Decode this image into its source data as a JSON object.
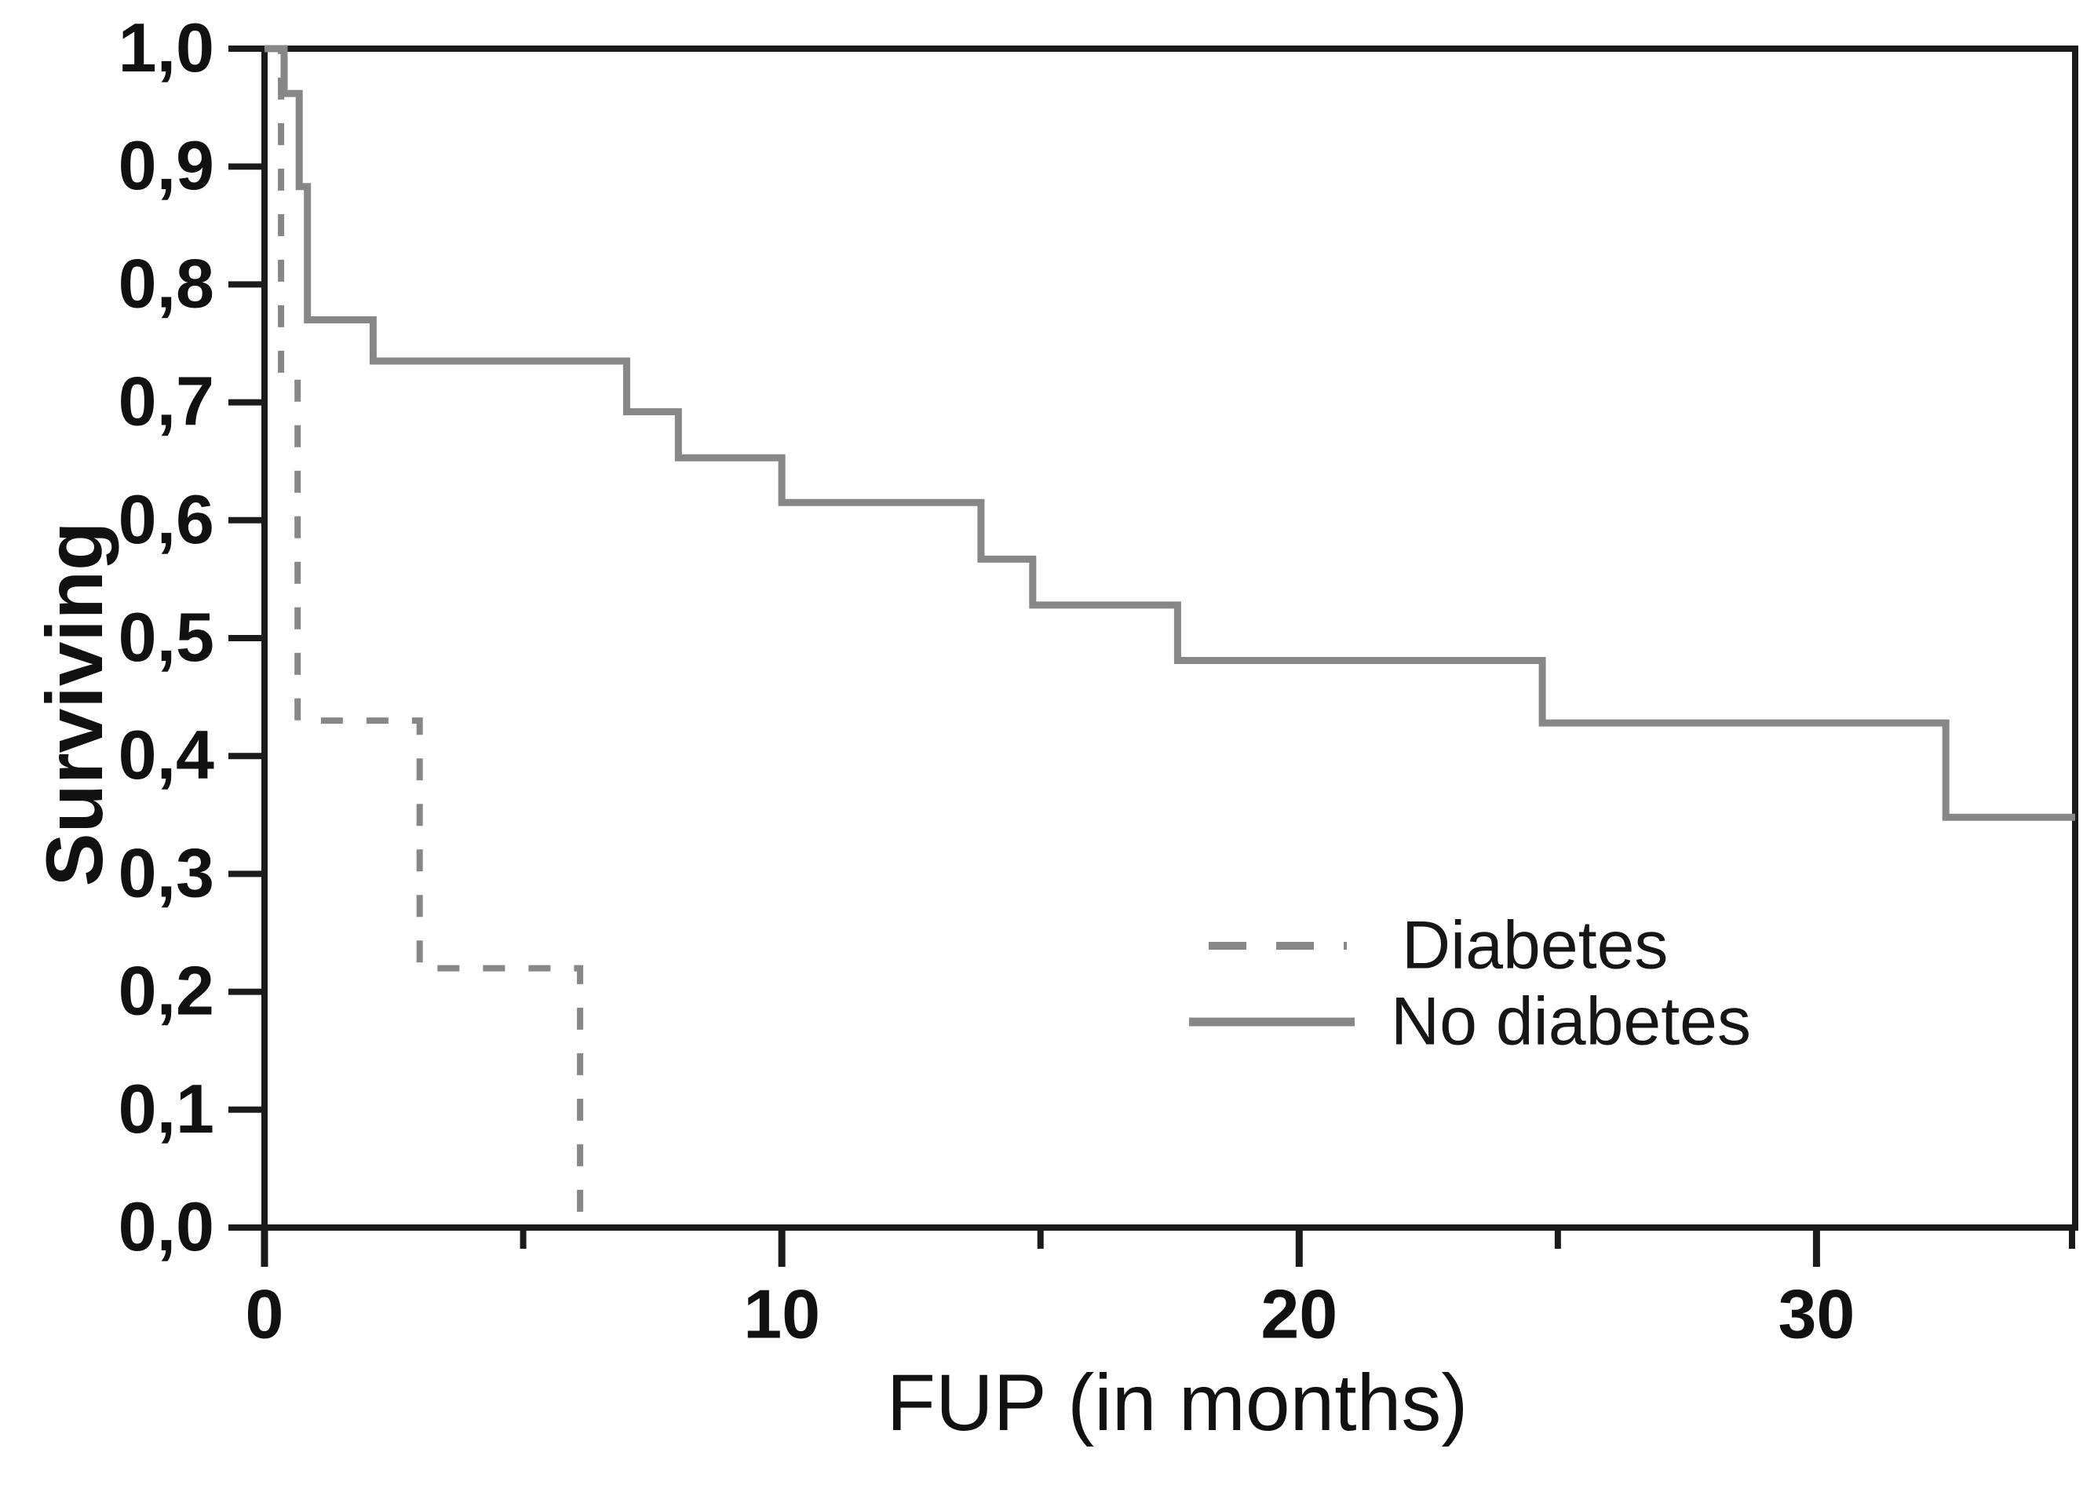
{
  "figure": {
    "background": "#ffffff"
  },
  "chart_data": {
    "type": "line",
    "variant": "kaplan-meier-survival-steps",
    "title": "",
    "xlabel": "FUP (in months)",
    "ylabel": "Surviving",
    "xlim": [
      0,
      35
    ],
    "ylim": [
      0,
      1
    ],
    "grid": false,
    "decimal_separator": ",",
    "axis_color": "#1b1b1b",
    "text_color": "#111111",
    "curve_color": "#878787",
    "x_ticks": [
      {
        "value": 0,
        "label": "0"
      },
      {
        "value": 10,
        "label": "10"
      },
      {
        "value": 20,
        "label": "20"
      },
      {
        "value": 30,
        "label": "30"
      }
    ],
    "x_minor_ticks": [
      5,
      15,
      25,
      35
    ],
    "y_ticks": [
      {
        "value": 1.0,
        "label": "1,0"
      },
      {
        "value": 0.9,
        "label": "0,9"
      },
      {
        "value": 0.8,
        "label": "0,8"
      },
      {
        "value": 0.7,
        "label": "0,7"
      },
      {
        "value": 0.6,
        "label": "0,6"
      },
      {
        "value": 0.5,
        "label": "0,5"
      },
      {
        "value": 0.4,
        "label": "0,4"
      },
      {
        "value": 0.3,
        "label": "0,3"
      },
      {
        "value": 0.2,
        "label": "0,2"
      },
      {
        "value": 0.1,
        "label": "0,1"
      },
      {
        "value": 0.0,
        "label": "0,0"
      }
    ],
    "legend": {
      "position": "inside-right",
      "entries": [
        "Diabetes",
        "No diabetes"
      ]
    },
    "series": [
      {
        "name": "Diabetes",
        "line_style": "dashed",
        "color": "#878787",
        "steps": [
          [
            0,
            1.0
          ],
          [
            0.32,
            1.0
          ],
          [
            0.32,
            0.72
          ],
          [
            0.64,
            0.72
          ],
          [
            0.64,
            0.43
          ],
          [
            3.0,
            0.43
          ],
          [
            3.0,
            0.22
          ],
          [
            6.1,
            0.22
          ],
          [
            6.1,
            0.0
          ]
        ]
      },
      {
        "name": "No diabetes",
        "line_style": "solid",
        "color": "#878787",
        "steps": [
          [
            0,
            1.0
          ],
          [
            0.38,
            1.0
          ],
          [
            0.38,
            0.962
          ],
          [
            0.67,
            0.962
          ],
          [
            0.67,
            0.883
          ],
          [
            0.83,
            0.883
          ],
          [
            0.83,
            0.77
          ],
          [
            2.1,
            0.77
          ],
          [
            2.1,
            0.735
          ],
          [
            7.0,
            0.735
          ],
          [
            7.0,
            0.692
          ],
          [
            8.0,
            0.692
          ],
          [
            8.0,
            0.653
          ],
          [
            10.0,
            0.653
          ],
          [
            10.0,
            0.615
          ],
          [
            13.85,
            0.615
          ],
          [
            13.85,
            0.567
          ],
          [
            14.85,
            0.567
          ],
          [
            14.85,
            0.528
          ],
          [
            17.65,
            0.528
          ],
          [
            17.65,
            0.481
          ],
          [
            24.7,
            0.481
          ],
          [
            24.7,
            0.428
          ],
          [
            32.5,
            0.428
          ],
          [
            32.5,
            0.348
          ],
          [
            35,
            0.348
          ]
        ]
      }
    ]
  }
}
